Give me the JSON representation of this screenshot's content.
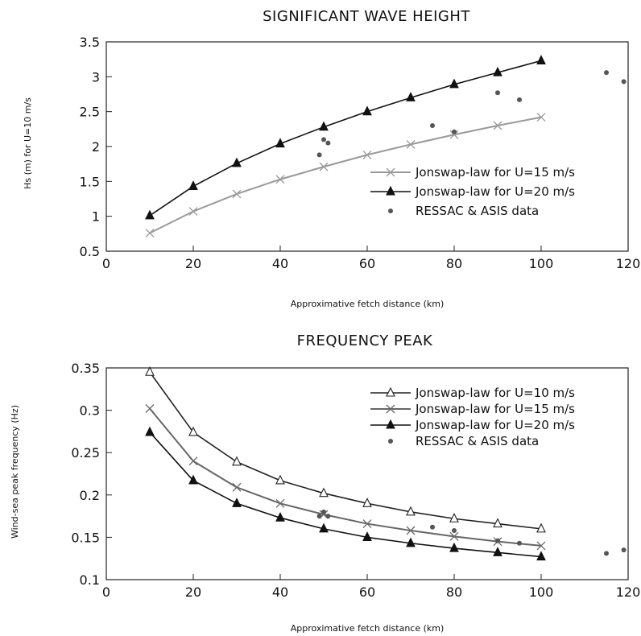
{
  "chart_data": [
    {
      "type": "line",
      "title": "SIGNIFICANT    WAVE    HEIGHT",
      "xlabel": "Approximative fetch distance (km)",
      "ylabel": "Hs (m) for U=10 m/s",
      "xlim": [
        0,
        120
      ],
      "ylim": [
        0.5,
        3.5
      ],
      "xticks": [
        0,
        20,
        40,
        60,
        80,
        100,
        120
      ],
      "yticks": [
        0.5,
        1,
        1.5,
        2,
        2.5,
        3,
        3.5
      ],
      "grid": false,
      "legend_position": "right",
      "series": [
        {
          "name": "Jonswap-law  for  U=15  m/s",
          "marker": "x",
          "color": "#999999",
          "x": [
            10,
            20,
            30,
            40,
            50,
            60,
            70,
            80,
            90,
            100
          ],
          "y": [
            0.76,
            1.07,
            1.32,
            1.53,
            1.71,
            1.88,
            2.03,
            2.17,
            2.3,
            2.42
          ]
        },
        {
          "name": "Jonswap-law  for  U=20  m/s",
          "marker": "triangle-filled",
          "color": "#111111",
          "x": [
            10,
            20,
            30,
            40,
            50,
            60,
            70,
            80,
            90,
            100
          ],
          "y": [
            1.01,
            1.43,
            1.76,
            2.04,
            2.28,
            2.5,
            2.7,
            2.89,
            3.06,
            3.23
          ]
        },
        {
          "name": "RESSAC  &  ASIS  data",
          "marker": "dot",
          "color": "#555555",
          "line": false,
          "x": [
            49,
            50,
            51,
            75,
            80,
            90,
            95,
            115,
            119
          ],
          "y": [
            1.88,
            2.1,
            2.05,
            2.3,
            2.21,
            2.77,
            2.67,
            3.06,
            2.93
          ]
        }
      ]
    },
    {
      "type": "line",
      "title": "FREQUENCY    PEAK",
      "xlabel": "Approximative fetch distance (km)",
      "ylabel": "Wind-sea peak frequency (Hz)",
      "xlim": [
        0,
        120
      ],
      "ylim": [
        0.1,
        0.35
      ],
      "xticks": [
        0,
        20,
        40,
        60,
        80,
        100,
        120
      ],
      "yticks": [
        0.1,
        0.15,
        0.2,
        0.25,
        0.3,
        0.35
      ],
      "grid": false,
      "legend_position": "top-right",
      "series": [
        {
          "name": "Jonswap-law  for  U=10  m/s",
          "marker": "triangle-open",
          "color": "#222222",
          "x": [
            10,
            20,
            30,
            40,
            50,
            60,
            70,
            80,
            90,
            100
          ],
          "y": [
            0.345,
            0.274,
            0.239,
            0.217,
            0.202,
            0.19,
            0.18,
            0.172,
            0.166,
            0.16
          ]
        },
        {
          "name": "Jonswap-law  for  U=15  m/s",
          "marker": "x",
          "color": "#666666",
          "x": [
            10,
            20,
            30,
            40,
            50,
            60,
            70,
            80,
            90,
            100
          ],
          "y": [
            0.302,
            0.24,
            0.209,
            0.19,
            0.177,
            0.166,
            0.158,
            0.151,
            0.145,
            0.14
          ]
        },
        {
          "name": "Jonswap-law  for  U=20  m/s",
          "marker": "triangle-filled",
          "color": "#111111",
          "x": [
            10,
            20,
            30,
            40,
            50,
            60,
            70,
            80,
            90,
            100
          ],
          "y": [
            0.274,
            0.217,
            0.19,
            0.173,
            0.16,
            0.15,
            0.143,
            0.137,
            0.132,
            0.127
          ]
        },
        {
          "name": "RESSAC  &  ASIS  data",
          "marker": "dot",
          "color": "#555555",
          "line": false,
          "x": [
            49,
            50,
            51,
            75,
            80,
            90,
            95,
            115,
            119
          ],
          "y": [
            0.175,
            0.18,
            0.175,
            0.162,
            0.158,
            0.146,
            0.143,
            0.131,
            0.135
          ]
        }
      ]
    }
  ]
}
